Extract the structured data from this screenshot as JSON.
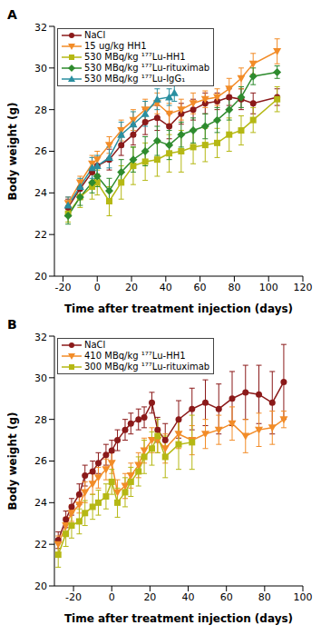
{
  "chart_data": [
    {
      "type": "line",
      "title": "A",
      "x_label": "Time after treatment injection (days)",
      "y_label": "Body weight (g)",
      "xlim": [
        -25,
        120
      ],
      "xticks": [
        -20,
        0,
        20,
        40,
        60,
        80,
        100,
        120
      ],
      "ylim": [
        20,
        32
      ],
      "yticks": [
        20,
        22,
        24,
        26,
        28,
        30,
        32
      ],
      "grid": false,
      "legend": "upper left",
      "series": [
        {
          "name": "NaCl",
          "color": "#8b1a1a",
          "marker": "circle",
          "x": [
            -17,
            -10,
            -3,
            0,
            7,
            14,
            21,
            28,
            35,
            42,
            49,
            56,
            63,
            70,
            77,
            84,
            91,
            105
          ],
          "values": [
            23.3,
            24.2,
            25.0,
            25.3,
            25.6,
            26.3,
            26.8,
            27.4,
            27.6,
            27.2,
            27.8,
            28.0,
            28.3,
            28.4,
            28.6,
            28.5,
            28.3,
            28.6
          ],
          "errors": [
            0.4,
            0.4,
            0.5,
            0.4,
            0.5,
            0.5,
            0.5,
            0.6,
            0.6,
            0.6,
            0.5,
            0.5,
            0.5,
            0.4,
            0.4,
            0.5,
            0.5,
            0.4
          ]
        },
        {
          "name": "15 ug/kg HH1",
          "color": "#f28c28",
          "marker": "triangle-down",
          "x": [
            -17,
            -10,
            -3,
            0,
            7,
            14,
            21,
            28,
            35,
            42,
            49,
            56,
            63,
            70,
            77,
            84,
            91,
            105
          ],
          "values": [
            23.5,
            24.5,
            25.4,
            25.6,
            26.3,
            27.0,
            27.5,
            28.0,
            28.3,
            27.8,
            28.0,
            28.3,
            28.5,
            28.6,
            29.0,
            29.5,
            30.2,
            30.8
          ],
          "errors": [
            0.3,
            0.3,
            0.4,
            0.4,
            0.4,
            0.5,
            0.5,
            0.5,
            0.5,
            0.5,
            0.5,
            0.5,
            0.4,
            0.4,
            0.5,
            0.5,
            0.5,
            0.6
          ]
        },
        {
          "name": "530 MBq/kg ¹⁷⁷Lu-HH1",
          "color": "#b5b814",
          "marker": "square",
          "x": [
            -17,
            -10,
            -3,
            0,
            7,
            14,
            21,
            28,
            35,
            42,
            49,
            56,
            63,
            70,
            77,
            84,
            91,
            105
          ],
          "values": [
            23.0,
            23.8,
            24.3,
            24.5,
            23.6,
            24.5,
            25.3,
            25.5,
            25.6,
            25.9,
            26.0,
            26.2,
            26.3,
            26.4,
            26.8,
            27.0,
            27.5,
            28.5
          ],
          "errors": [
            0.4,
            0.5,
            0.6,
            0.6,
            0.7,
            0.8,
            0.9,
            0.9,
            0.8,
            0.9,
            1.0,
            0.8,
            0.8,
            0.7,
            0.8,
            0.7,
            0.6,
            0.6
          ]
        },
        {
          "name": "530 MBq/kg ¹⁷⁷Lu-rituximab",
          "color": "#2e8b2e",
          "marker": "diamond",
          "x": [
            -17,
            -10,
            -3,
            0,
            7,
            14,
            21,
            28,
            35,
            42,
            49,
            56,
            63,
            70,
            77,
            84,
            91,
            105
          ],
          "values": [
            22.9,
            23.8,
            24.5,
            24.8,
            24.1,
            25.0,
            25.6,
            26.0,
            26.5,
            26.3,
            26.8,
            27.0,
            27.2,
            27.5,
            28.0,
            28.6,
            29.6,
            29.8
          ],
          "errors": [
            0.4,
            0.4,
            0.5,
            0.5,
            0.6,
            0.6,
            0.6,
            0.7,
            0.7,
            0.7,
            0.6,
            0.6,
            0.6,
            0.6,
            0.5,
            0.5,
            0.4,
            0.3
          ]
        },
        {
          "name": "530 MBq/kg ¹⁷⁷Lu-IgG₁",
          "color": "#2a8fa0",
          "marker": "triangle",
          "x": [
            -17,
            -10,
            -3,
            0,
            7,
            14,
            21,
            28,
            35,
            42,
            45
          ],
          "values": [
            23.4,
            24.3,
            25.2,
            25.3,
            25.7,
            26.8,
            27.3,
            27.8,
            28.5,
            28.6,
            28.8
          ],
          "errors": [
            0.4,
            0.4,
            0.5,
            0.5,
            0.5,
            0.6,
            0.6,
            0.6,
            0.5,
            0.4,
            0.4
          ]
        }
      ]
    },
    {
      "type": "line",
      "title": "B",
      "x_label": "Time after treatment injection (days)",
      "y_label": "Body weight (g)",
      "xlim": [
        -30,
        100
      ],
      "xticks": [
        -20,
        0,
        20,
        40,
        60,
        80,
        100
      ],
      "ylim": [
        20,
        32
      ],
      "yticks": [
        20,
        22,
        24,
        26,
        28,
        30,
        32
      ],
      "grid": false,
      "legend": "upper left",
      "series": [
        {
          "name": "NaCl",
          "color": "#8b1a1a",
          "marker": "circle",
          "x": [
            -28,
            -24,
            -21,
            -17,
            -14,
            -10,
            -7,
            -3,
            0,
            3,
            7,
            10,
            14,
            17,
            21,
            24,
            28,
            35,
            42,
            49,
            56,
            63,
            70,
            77,
            84,
            90
          ],
          "values": [
            22.2,
            23.2,
            23.8,
            24.4,
            25.3,
            25.5,
            25.9,
            26.3,
            26.5,
            27.0,
            27.5,
            27.8,
            28.0,
            28.1,
            28.8,
            27.5,
            27.0,
            28.0,
            28.5,
            28.8,
            28.5,
            29.0,
            29.3,
            29.2,
            28.8,
            29.8
          ],
          "errors": [
            0.4,
            0.4,
            0.4,
            0.5,
            0.5,
            0.5,
            0.5,
            0.5,
            0.5,
            0.5,
            0.5,
            0.5,
            0.5,
            0.5,
            0.5,
            0.6,
            0.8,
            0.9,
            1.0,
            1.1,
            1.2,
            1.3,
            1.3,
            1.4,
            1.5,
            1.8
          ]
        },
        {
          "name": "410 MBq/kg ¹⁷⁷Lu-HH1",
          "color": "#f28c28",
          "marker": "triangle-down",
          "x": [
            -28,
            -24,
            -21,
            -17,
            -14,
            -10,
            -7,
            -3,
            0,
            3,
            7,
            10,
            14,
            17,
            21,
            24,
            28,
            35,
            42,
            49,
            56,
            63,
            70,
            77,
            84,
            90
          ],
          "values": [
            22.0,
            22.9,
            23.5,
            23.9,
            24.5,
            24.9,
            25.2,
            25.6,
            25.9,
            24.5,
            24.8,
            25.3,
            25.8,
            26.5,
            27.0,
            27.0,
            26.6,
            27.3,
            27.0,
            27.3,
            27.5,
            27.8,
            27.2,
            27.5,
            27.6,
            28.0
          ],
          "errors": [
            0.4,
            0.4,
            0.4,
            0.4,
            0.5,
            0.5,
            0.5,
            0.5,
            0.5,
            0.6,
            0.6,
            0.6,
            0.6,
            0.6,
            0.6,
            0.6,
            0.7,
            0.7,
            0.7,
            0.7,
            0.7,
            0.8,
            0.8,
            0.8,
            0.8,
            0.4
          ]
        },
        {
          "name": "300 MBq/kg ¹⁷⁷Lu-rituximab",
          "color": "#b5b814",
          "marker": "square",
          "x": [
            -28,
            -24,
            -21,
            -17,
            -14,
            -10,
            -7,
            -3,
            0,
            3,
            7,
            10,
            14,
            17,
            21,
            24,
            28,
            35,
            42
          ],
          "values": [
            21.5,
            22.5,
            22.9,
            23.1,
            23.5,
            23.8,
            24.0,
            24.3,
            25.0,
            24.0,
            24.5,
            25.0,
            25.5,
            26.2,
            26.6,
            27.2,
            26.2,
            26.8,
            26.9
          ],
          "errors": [
            0.6,
            0.6,
            0.6,
            0.6,
            0.6,
            0.6,
            0.6,
            0.6,
            0.6,
            0.7,
            0.7,
            0.7,
            0.7,
            0.8,
            0.8,
            0.8,
            1.0,
            1.2,
            1.3
          ]
        }
      ]
    }
  ]
}
